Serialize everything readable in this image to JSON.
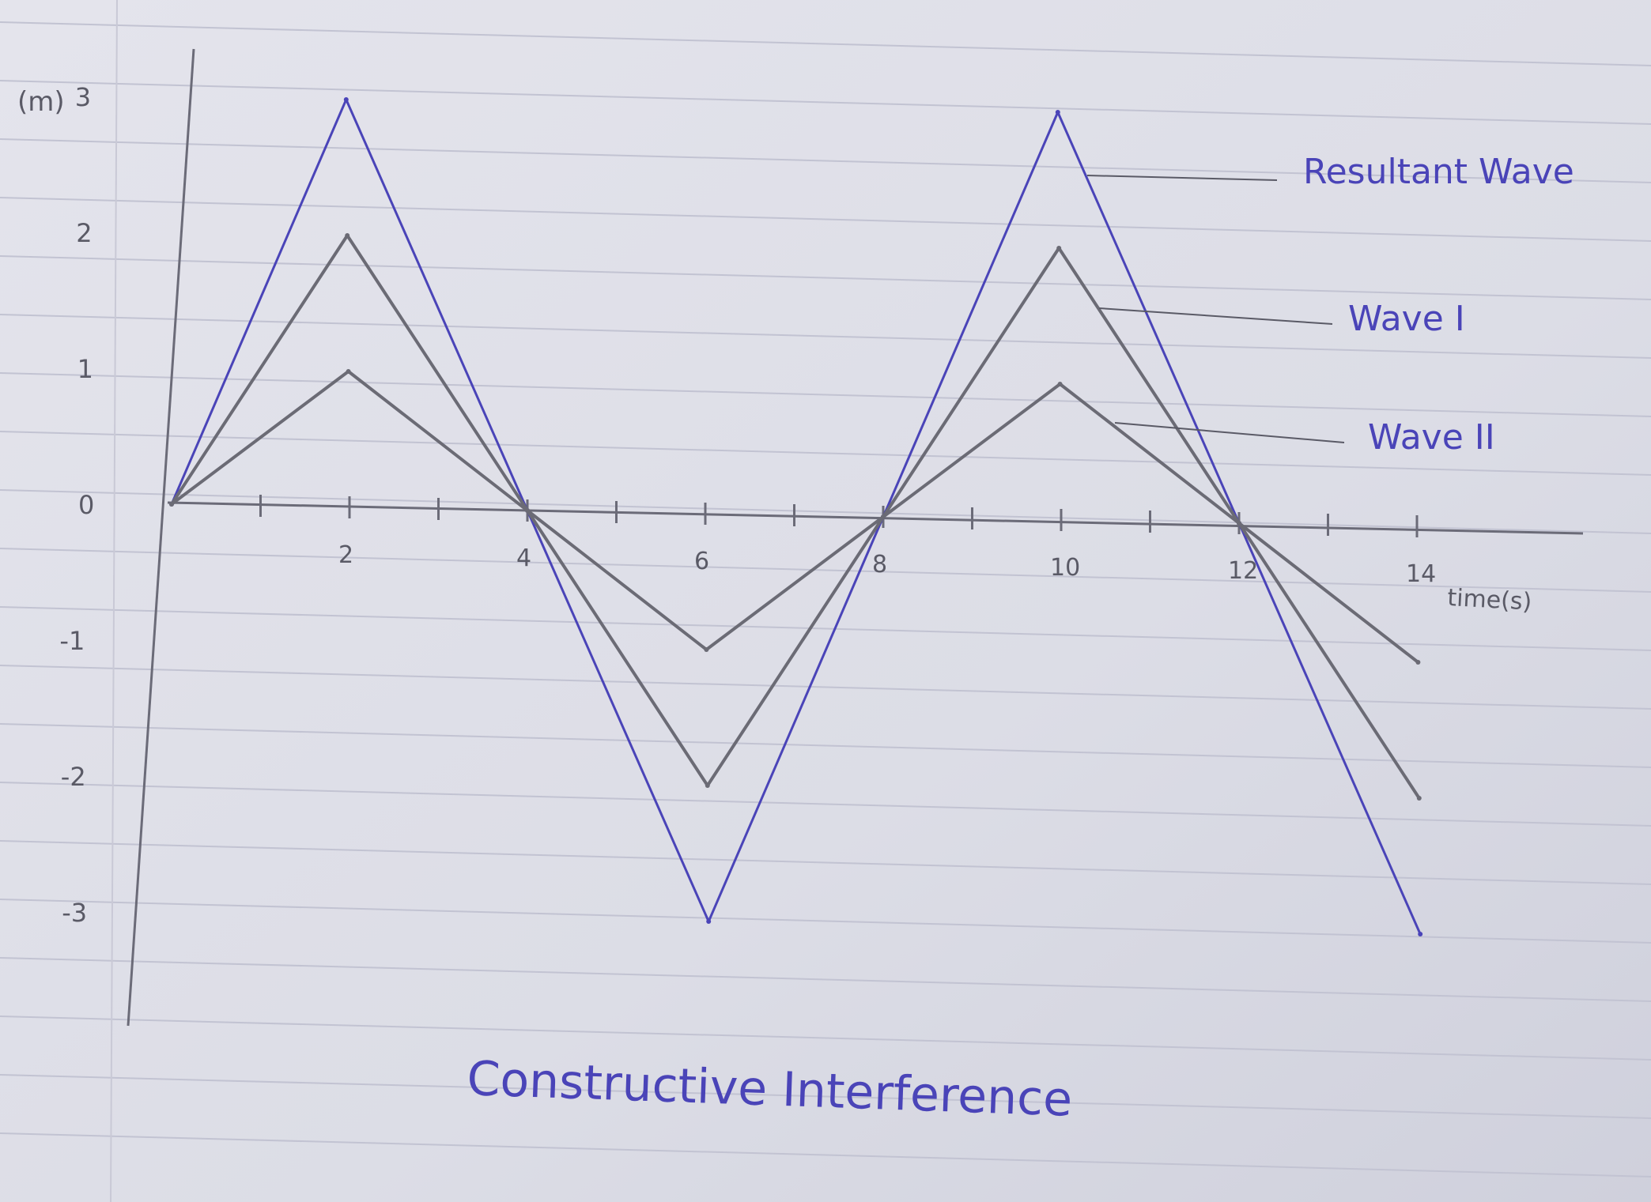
{
  "chart_data": {
    "type": "line",
    "title": "Constructive Interference",
    "xlabel": "time(s)",
    "ylabel": "(m)",
    "x_ticks": [
      "2",
      "4",
      "6",
      "8",
      "10",
      "12",
      "14"
    ],
    "y_ticks": [
      "3",
      "2",
      "1",
      "0",
      "-1",
      "-2",
      "-3"
    ],
    "xlim": [
      0,
      14
    ],
    "ylim": [
      -3,
      3
    ],
    "grid": false,
    "series": [
      {
        "name": "Resultant Wave",
        "color": "#4a44b8",
        "x": [
          0,
          2,
          4,
          6,
          8,
          10,
          12,
          14
        ],
        "y": [
          0,
          3,
          0,
          -3,
          0,
          3,
          0,
          -3
        ]
      },
      {
        "name": "Wave I",
        "color": "#6b6b75",
        "x": [
          0,
          2,
          4,
          6,
          8,
          10,
          12,
          14
        ],
        "y": [
          0,
          2,
          0,
          -2,
          0,
          2,
          0,
          -2
        ]
      },
      {
        "name": "Wave II",
        "color": "#6b6b75",
        "x": [
          0,
          2,
          4,
          6,
          8,
          10,
          12,
          14
        ],
        "y": [
          0,
          1,
          0,
          -1,
          0,
          1,
          0,
          -1
        ]
      }
    ]
  }
}
